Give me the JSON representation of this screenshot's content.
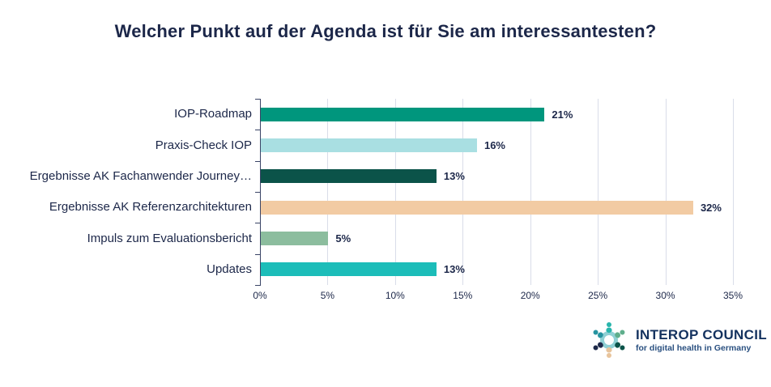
{
  "title": "Welcher Punkt auf der Agenda ist für Sie am interessantesten?",
  "chart_data": {
    "type": "bar",
    "orientation": "horizontal",
    "title": "Welcher Punkt auf der Agenda ist für Sie am interessantesten?",
    "categories": [
      "IOP-Roadmap",
      "Praxis-Check IOP",
      "Ergebnisse AK Fachanwender Journey…",
      "Ergebnisse AK Referenzarchitekturen",
      "Impuls zum Evaluationsbericht",
      "Updates"
    ],
    "values": [
      21,
      16,
      13,
      32,
      5,
      13
    ],
    "value_labels": [
      "21%",
      "16%",
      "13%",
      "32%",
      "5%",
      "13%"
    ],
    "bar_colors": [
      "#00967D",
      "#A9DFE2",
      "#0B5349",
      "#F2CBA3",
      "#8CBD9E",
      "#1CBDB9"
    ],
    "x_ticks": [
      "0%",
      "5%",
      "10%",
      "15%",
      "20%",
      "25%",
      "30%",
      "35%"
    ],
    "x_tick_values": [
      0,
      5,
      10,
      15,
      20,
      25,
      30,
      35
    ],
    "xlim": [
      0,
      35
    ],
    "xlabel": "",
    "ylabel": "",
    "grid": true,
    "legend": false
  },
  "colors": {
    "title_text": "#1C2749",
    "axis_text": "#1C2749",
    "gridline": "#D9DDE9",
    "axis_line": "#3A4466"
  },
  "logo": {
    "title": "INTEROP COUNCIL",
    "subtitle": "for digital health in Germany",
    "icon_colors": [
      "#29B5AC",
      "#5FAE8C",
      "#0B5349",
      "#E8C49C",
      "#1E2A4A",
      "#2794A0"
    ],
    "ring_color": "#8FD0D4"
  }
}
